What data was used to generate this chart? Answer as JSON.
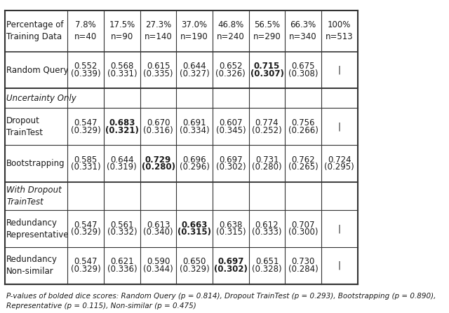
{
  "title": "",
  "footer": "P-values of bolded dice scores: Random Query (p = 0.814), Dropout TrainTest (p = 0.293), Bootstrapping (p = 0.890),\nRepresentative (p = 0.115), Non-similar (p = 0.475)",
  "col_headers": [
    "Percentage of\nTraining Data",
    "7.8%\nn=40",
    "17.5%\nn=90",
    "27.3%\nn=140",
    "37.0%\nn=190",
    "46.8%\nn=240",
    "56.5%\nn=290",
    "66.3%\nn=340",
    "100%\nn=513"
  ],
  "rows": [
    {
      "label": "Random Query",
      "label_italic": false,
      "label_bold": false,
      "values": [
        "0.552\n(0.339)",
        "0.568\n(0.331)",
        "0.615\n(0.335)",
        "0.644\n(0.327)",
        "0.652\n(0.326)",
        "0.715\n(0.307)",
        "0.675\n(0.308)",
        "|"
      ],
      "bold_cells": [
        5
      ]
    },
    {
      "label": "Uncertainty Only",
      "label_italic": true,
      "label_bold": false,
      "values": [
        "",
        "",
        "",
        "",
        "",
        "",
        "",
        "|"
      ],
      "bold_cells": [],
      "section_header": true
    },
    {
      "label": "Dropout\nTrainTest",
      "label_italic": false,
      "label_bold": false,
      "values": [
        "0.547\n(0.329)",
        "0.683\n(0.321)",
        "0.670\n(0.316)",
        "0.691\n(0.334)",
        "0.607\n(0.345)",
        "0.774\n(0.252)",
        "0.756\n(0.266)",
        "|"
      ],
      "bold_cells": [
        1
      ]
    },
    {
      "label": "Bootstrapping",
      "label_italic": false,
      "label_bold": false,
      "values": [
        "0.585\n(0.331)",
        "0.644\n(0.319)",
        "0.729\n(0.280)",
        "0.696\n(0.296)",
        "0.697\n(0.302)",
        "0.731\n(0.280)",
        "0.762\n(0.265)",
        "0.724\n(0.295)"
      ],
      "bold_cells": [
        2
      ]
    },
    {
      "label": "With Dropout\nTrainTest",
      "label_italic": true,
      "label_bold": false,
      "values": [
        "",
        "",
        "",
        "",
        "",
        "",
        "",
        "|"
      ],
      "bold_cells": [],
      "section_header": true
    },
    {
      "label": "Redundancy\nRepresentative",
      "label_italic": false,
      "label_bold": false,
      "values": [
        "0.547\n(0.329)",
        "0.561\n(0.332)",
        "0.613\n(0.340)",
        "0.663\n(0.315)",
        "0.638\n(0.315)",
        "0.612\n(0.333)",
        "0.707\n(0.300)",
        "|"
      ],
      "bold_cells": [
        3
      ]
    },
    {
      "label": "Redundancy\nNon-similar",
      "label_italic": false,
      "label_bold": false,
      "values": [
        "0.547\n(0.329)",
        "0.621\n(0.336)",
        "0.590\n(0.344)",
        "0.650\n(0.329)",
        "0.697\n(0.302)",
        "0.651\n(0.328)",
        "0.730\n(0.284)",
        "|"
      ],
      "bold_cells": [
        4
      ]
    }
  ],
  "section_breaks_before": [
    1,
    4
  ],
  "bg_color": "#ffffff",
  "text_color": "#1a1a1a",
  "border_color": "#333333",
  "font_size": 8.5,
  "footer_font_size": 7.5
}
